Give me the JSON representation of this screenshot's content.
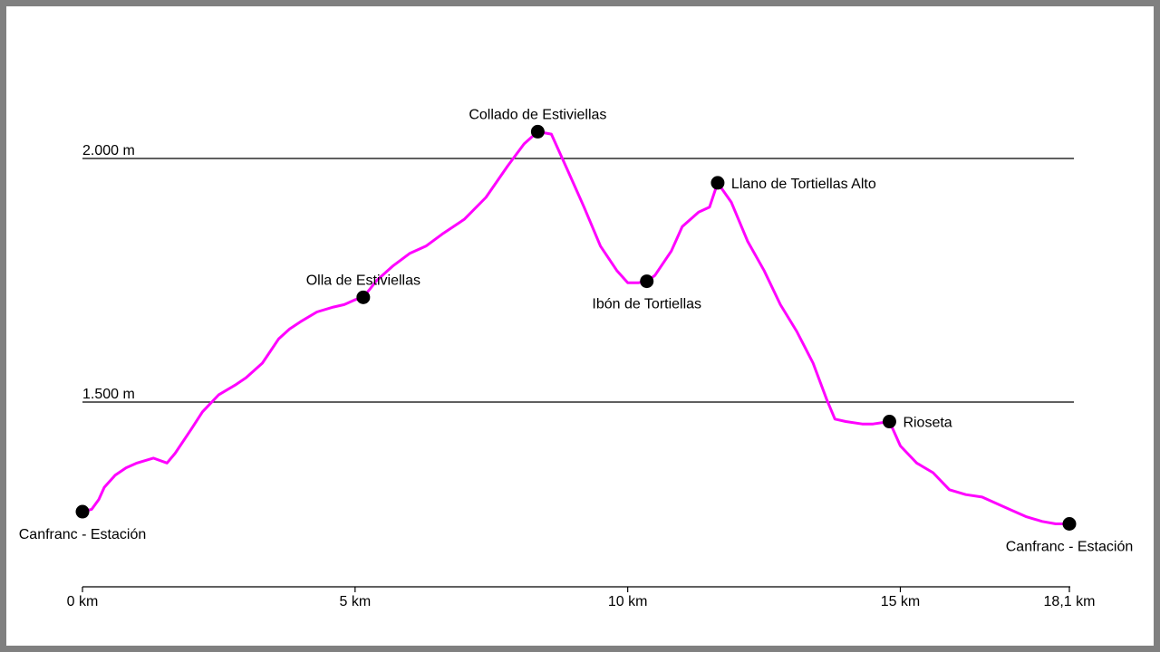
{
  "chart_data": {
    "type": "line",
    "xlabel": "",
    "ylabel": "",
    "xlim": [
      0,
      18.1
    ],
    "ylim": [
      1240,
      2100
    ],
    "grid_y": [
      {
        "value": 2000,
        "label": "2.000 m"
      },
      {
        "value": 1500,
        "label": "1.500 m"
      }
    ],
    "x_ticks": [
      {
        "value": 0,
        "label": "0 km"
      },
      {
        "value": 5,
        "label": "5 km"
      },
      {
        "value": 10,
        "label": "10 km"
      },
      {
        "value": 15,
        "label": "15 km"
      },
      {
        "value": 18.1,
        "label": "18,1 km"
      }
    ],
    "series": [
      {
        "color": "#ff00ff",
        "x": [
          0,
          0.17,
          0.3,
          0.4,
          0.6,
          0.8,
          1.0,
          1.3,
          1.55,
          1.7,
          2.0,
          2.2,
          2.5,
          2.8,
          3.0,
          3.3,
          3.6,
          3.8,
          4.0,
          4.3,
          4.6,
          4.8,
          5.0,
          5.15,
          5.4,
          5.7,
          6.0,
          6.3,
          6.6,
          7.0,
          7.4,
          7.8,
          8.1,
          8.35,
          8.6,
          8.9,
          9.2,
          9.5,
          9.8,
          10.0,
          10.2,
          10.35,
          10.5,
          10.8,
          11.0,
          11.3,
          11.5,
          11.65,
          11.9,
          12.2,
          12.5,
          12.8,
          13.1,
          13.4,
          13.65,
          13.8,
          14.0,
          14.3,
          14.5,
          14.8,
          15.0,
          15.3,
          15.6,
          15.9,
          16.2,
          16.5,
          16.8,
          17.0,
          17.3,
          17.6,
          17.85,
          18.1
        ],
        "y": [
          1275,
          1280,
          1300,
          1325,
          1350,
          1365,
          1375,
          1385,
          1375,
          1395,
          1445,
          1480,
          1515,
          1535,
          1550,
          1580,
          1630,
          1650,
          1665,
          1685,
          1695,
          1700,
          1710,
          1715,
          1750,
          1780,
          1805,
          1820,
          1845,
          1875,
          1920,
          1985,
          2030,
          2055,
          2050,
          1975,
          1900,
          1820,
          1770,
          1745,
          1745,
          1748,
          1760,
          1810,
          1860,
          1890,
          1900,
          1950,
          1910,
          1830,
          1770,
          1700,
          1645,
          1580,
          1505,
          1465,
          1460,
          1455,
          1455,
          1460,
          1410,
          1375,
          1355,
          1320,
          1310,
          1305,
          1290,
          1280,
          1265,
          1255,
          1250,
          1250
        ]
      }
    ],
    "waypoints": [
      {
        "x": 0,
        "y": 1275,
        "label": "Canfranc - Estación",
        "pos": "below"
      },
      {
        "x": 5.15,
        "y": 1715,
        "label": "Olla de Estiviellas",
        "pos": "above"
      },
      {
        "x": 8.35,
        "y": 2055,
        "label": "Collado de Estiviellas",
        "pos": "above"
      },
      {
        "x": 10.35,
        "y": 1748,
        "label": "Ibón de Tortiellas",
        "pos": "below"
      },
      {
        "x": 11.65,
        "y": 1950,
        "label": "Llano de Tortiellas Alto",
        "pos": "right"
      },
      {
        "x": 14.8,
        "y": 1460,
        "label": "Rioseta",
        "pos": "right"
      },
      {
        "x": 18.1,
        "y": 1250,
        "label": "Canfranc - Estación",
        "pos": "below"
      }
    ]
  }
}
